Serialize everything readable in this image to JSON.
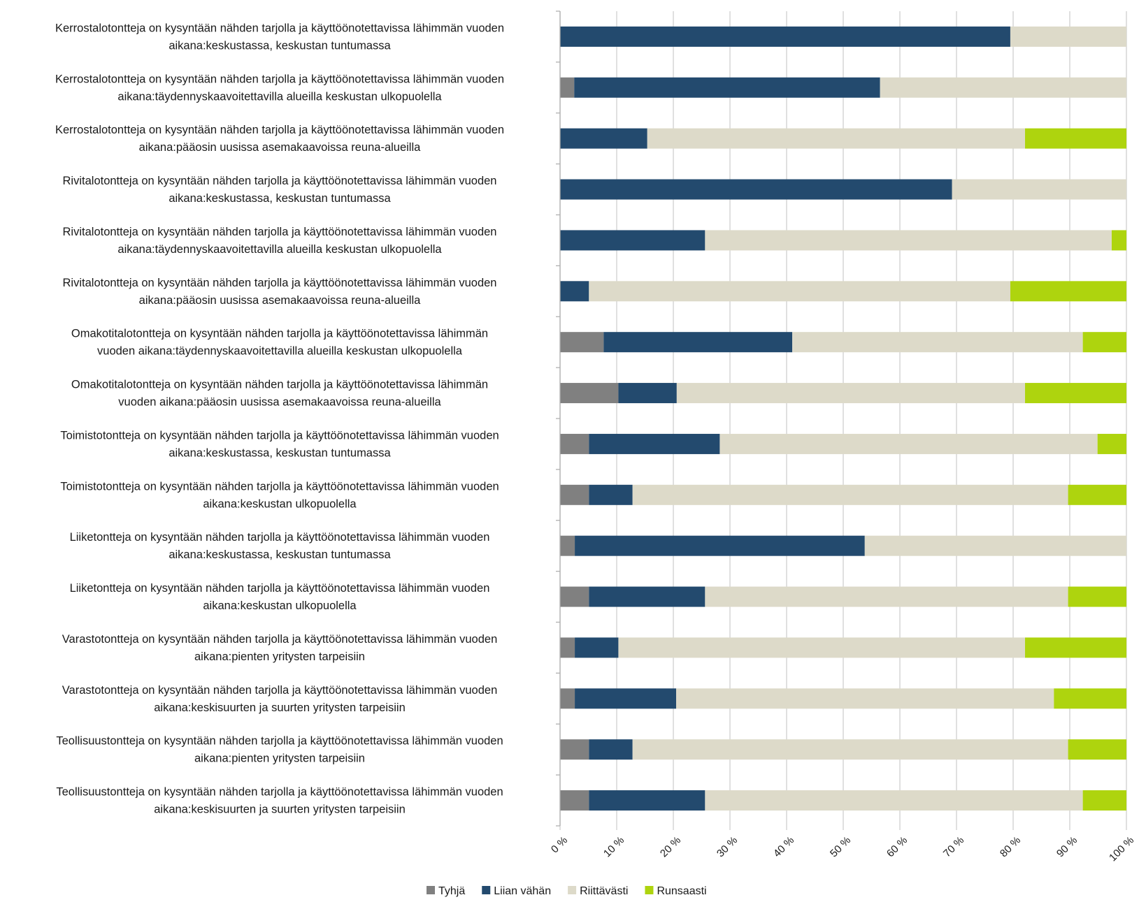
{
  "chart_data": {
    "type": "bar",
    "orientation": "horizontal",
    "stacked": "percent",
    "categories": [
      "Kerrostalotontteja on kysyntään nähden tarjolla ja käyttöönotettavissa lähimmän vuoden aikana:keskustassa, keskustan tuntumassa",
      "Kerrostalotontteja on kysyntään nähden tarjolla ja käyttöönotettavissa lähimmän vuoden aikana:täydennyskaavoitettavilla alueilla keskustan ulkopuolella",
      "Kerrostalotontteja on kysyntään nähden tarjolla ja käyttöönotettavissa lähimmän vuoden aikana:pääosin uusissa asemakaavoissa reuna-alueilla",
      "Rivitalotontteja on kysyntään nähden tarjolla ja käyttöönotettavissa lähimmän vuoden aikana:keskustassa, keskustan tuntumassa",
      "Rivitalotontteja on kysyntään nähden tarjolla ja käyttöönotettavissa lähimmän vuoden aikana:täydennyskaavoitettavilla alueilla keskustan ulkopuolella",
      "Rivitalotontteja on kysyntään nähden tarjolla ja käyttöönotettavissa lähimmän vuoden aikana:pääosin uusissa asemakaavoissa reuna-alueilla",
      "Omakotitalotontteja on kysyntään nähden tarjolla ja käyttöönotettavissa lähimmän vuoden aikana:täydennyskaavoitettavilla alueilla keskustan ulkopuolella",
      "Omakotitalotontteja on kysyntään nähden tarjolla ja käyttöönotettavissa lähimmän vuoden aikana:pääosin uusissa asemakaavoissa reuna-alueilla",
      "Toimistotontteja on kysyntään nähden tarjolla ja käyttöönotettavissa lähimmän vuoden aikana:keskustassa, keskustan tuntumassa",
      "Toimistotontteja on kysyntään nähden tarjolla ja käyttöönotettavissa lähimmän vuoden aikana:keskustan ulkopuolella",
      "Liiketontteja on kysyntään nähden tarjolla ja käyttöönotettavissa lähimmän vuoden aikana:keskustassa, keskustan tuntumassa",
      "Liiketontteja on kysyntään nähden tarjolla ja käyttöönotettavissa lähimmän vuoden aikana:keskustan ulkopuolella",
      "Varastotontteja on kysyntään nähden tarjolla ja käyttöönotettavissa lähimmän vuoden aikana:pienten yritysten tarpeisiin",
      "Varastotontteja on kysyntään nähden tarjolla ja käyttöönotettavissa lähimmän vuoden aikana:keskisuurten ja suurten yritysten tarpeisiin",
      "Teollisuustontteja on kysyntään nähden tarjolla ja käyttöönotettavissa lähimmän vuoden aikana:pienten yritysten tarpeisiin",
      "Teollisuustontteja on kysyntään nähden tarjolla ja käyttöönotettavissa lähimmän vuoden aikana:keskisuurten ja suurten yritysten tarpeisiin"
    ],
    "category_label_lines": [
      [
        "Kerrostalotontteja on kysyntään nähden tarjolla ja käyttöönotettavissa lähimmän vuoden",
        "aikana:keskustassa, keskustan tuntumassa"
      ],
      [
        "Kerrostalotontteja on kysyntään nähden tarjolla ja käyttöönotettavissa lähimmän vuoden",
        "aikana:täydennyskaavoitettavilla alueilla keskustan ulkopuolella"
      ],
      [
        "Kerrostalotontteja on kysyntään nähden tarjolla ja käyttöönotettavissa lähimmän vuoden",
        "aikana:pääosin uusissa asemakaavoissa reuna-alueilla"
      ],
      [
        "Rivitalotontteja on kysyntään nähden tarjolla ja käyttöönotettavissa lähimmän vuoden",
        "aikana:keskustassa, keskustan tuntumassa"
      ],
      [
        "Rivitalotontteja on kysyntään nähden tarjolla ja käyttöönotettavissa lähimmän vuoden",
        "aikana:täydennyskaavoitettavilla alueilla keskustan ulkopuolella"
      ],
      [
        "Rivitalotontteja on kysyntään nähden tarjolla ja käyttöönotettavissa lähimmän vuoden",
        "aikana:pääosin uusissa asemakaavoissa reuna-alueilla"
      ],
      [
        "Omakotitalotontteja on kysyntään nähden tarjolla ja käyttöönotettavissa lähimmän",
        "vuoden aikana:täydennyskaavoitettavilla alueilla keskustan ulkopuolella"
      ],
      [
        "Omakotitalotontteja on kysyntään nähden tarjolla ja käyttöönotettavissa lähimmän",
        "vuoden aikana:pääosin uusissa asemakaavoissa reuna-alueilla"
      ],
      [
        "Toimistotontteja on kysyntään nähden tarjolla ja käyttöönotettavissa lähimmän vuoden",
        "aikana:keskustassa, keskustan tuntumassa"
      ],
      [
        "Toimistotontteja on kysyntään nähden tarjolla ja käyttöönotettavissa lähimmän vuoden",
        "aikana:keskustan ulkopuolella"
      ],
      [
        "Liiketontteja on kysyntään nähden tarjolla ja käyttöönotettavissa lähimmän vuoden",
        "aikana:keskustassa, keskustan tuntumassa"
      ],
      [
        "Liiketontteja on kysyntään nähden tarjolla ja käyttöönotettavissa lähimmän vuoden",
        "aikana:keskustan ulkopuolella"
      ],
      [
        "Varastotontteja on kysyntään nähden tarjolla ja käyttöönotettavissa lähimmän vuoden",
        "aikana:pienten yritysten tarpeisiin"
      ],
      [
        "Varastotontteja on kysyntään nähden tarjolla ja käyttöönotettavissa lähimmän vuoden",
        "aikana:keskisuurten ja suurten yritysten tarpeisiin"
      ],
      [
        "Teollisuustontteja on kysyntään nähden tarjolla ja käyttöönotettavissa lähimmän vuoden",
        "aikana:pienten yritysten tarpeisiin"
      ],
      [
        "Teollisuustontteja on kysyntään nähden tarjolla ja käyttöönotettavissa lähimmän vuoden",
        "aikana:keskisuurten ja suurten yritysten tarpeisiin"
      ]
    ],
    "series": [
      {
        "name": "Tyhjä",
        "color": "#808080",
        "values": [
          0,
          2.5,
          0,
          0,
          0,
          0,
          7.7,
          10.3,
          5.1,
          5.1,
          2.6,
          5.1,
          2.6,
          2.6,
          5.1,
          5.1
        ]
      },
      {
        "name": "Liian vähän",
        "color": "#234a6e",
        "values": [
          79.5,
          54.0,
          15.4,
          69.2,
          25.6,
          5.1,
          33.3,
          10.3,
          23.1,
          7.7,
          51.2,
          20.5,
          7.7,
          17.9,
          7.7,
          20.5
        ]
      },
      {
        "name": "Riittävästi",
        "color": "#dddac9",
        "values": [
          20.5,
          43.5,
          66.7,
          30.8,
          71.8,
          74.4,
          51.3,
          61.5,
          66.7,
          76.9,
          46.2,
          64.1,
          71.8,
          66.7,
          76.9,
          66.7
        ]
      },
      {
        "name": "Runsaasti",
        "color": "#aed40e",
        "values": [
          0,
          0,
          17.9,
          0,
          2.6,
          20.5,
          7.7,
          17.9,
          5.1,
          10.3,
          0,
          10.3,
          17.9,
          12.8,
          10.3,
          7.7
        ]
      }
    ],
    "x_ticks": [
      "0 %",
      "10 %",
      "20 %",
      "30 %",
      "40 %",
      "50 %",
      "60 %",
      "70 %",
      "80 %",
      "90 %",
      "100 %"
    ],
    "xlim": [
      0,
      100
    ],
    "grid": true,
    "legend_position": "bottom",
    "title": "",
    "xlabel": "",
    "ylabel": ""
  }
}
